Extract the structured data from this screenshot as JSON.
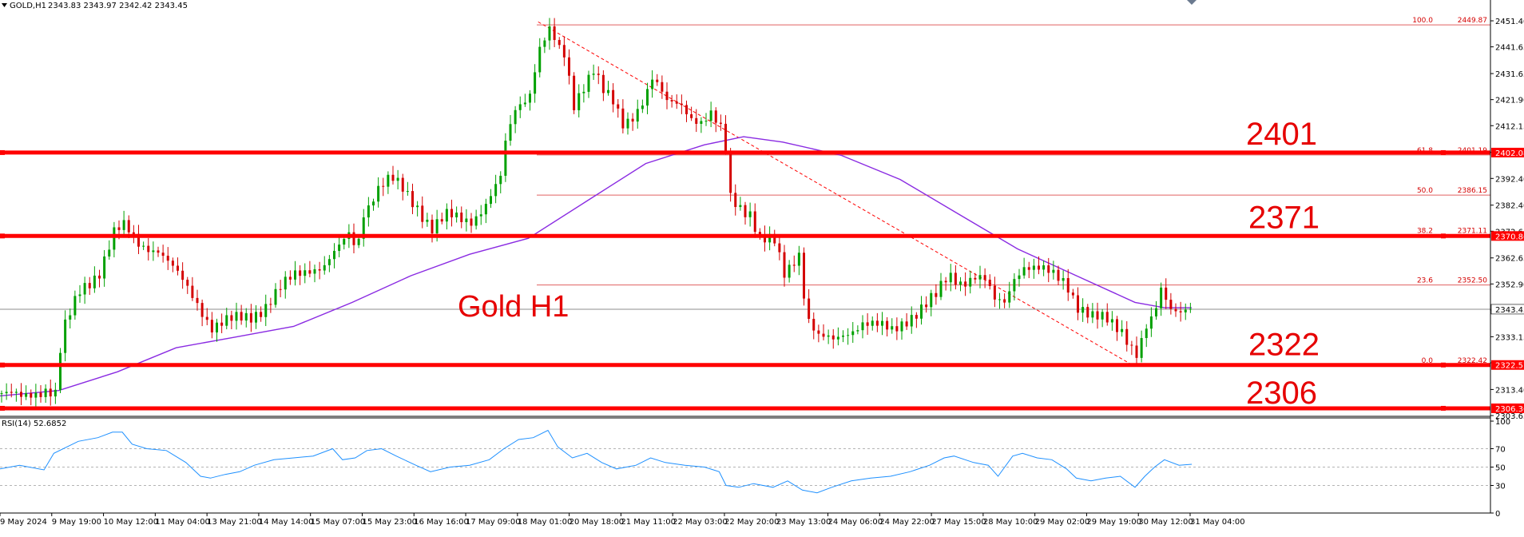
{
  "header": {
    "symbol": "GOLD,H1",
    "ohlc": "2343.83 2343.97 2342.42 2343.45"
  },
  "rsi_header": "RSI(14) 52.6852",
  "chart_data": [
    {
      "type": "candlestick",
      "symbol": "GOLD",
      "timeframe": "H1",
      "title": "Gold H1",
      "ylim": [
        2303.65,
        2455
      ],
      "y_ticks": [
        "2451.40",
        "2441.65",
        "2431.65",
        "2421.90",
        "2412.15",
        "2402.15",
        "2392.40",
        "2382.40",
        "2372.65",
        "2362.65",
        "2352.90",
        "2343.15",
        "2333.15",
        "2323.40",
        "2313.40",
        "2303.65"
      ],
      "x_ticks": [
        "9 May 2024",
        "9 May 19:00",
        "10 May 12:00",
        "11 May 04:00",
        "13 May 21:00",
        "14 May 14:00",
        "15 May 07:00",
        "15 May 23:00",
        "16 May 16:00",
        "17 May 09:00",
        "18 May 01:00",
        "20 May 18:00",
        "21 May 11:00",
        "22 May 03:00",
        "22 May 20:00",
        "23 May 13:00",
        "24 May 06:00",
        "24 May 22:00",
        "27 May 15:00",
        "28 May 10:00",
        "29 May 02:00",
        "29 May 19:00",
        "30 May 12:00",
        "31 May 04:00"
      ],
      "price_path": [
        [
          0,
          2312
        ],
        [
          20,
          2310
        ],
        [
          45,
          2314
        ],
        [
          55,
          2312
        ],
        [
          62,
          2334
        ],
        [
          80,
          2350
        ],
        [
          100,
          2358
        ],
        [
          115,
          2372
        ],
        [
          125,
          2374
        ],
        [
          140,
          2368
        ],
        [
          160,
          2366
        ],
        [
          180,
          2356
        ],
        [
          200,
          2346
        ],
        [
          215,
          2337
        ],
        [
          235,
          2339
        ],
        [
          255,
          2341
        ],
        [
          270,
          2345
        ],
        [
          285,
          2351
        ],
        [
          300,
          2356
        ],
        [
          315,
          2359
        ],
        [
          330,
          2360
        ],
        [
          345,
          2366
        ],
        [
          355,
          2371
        ],
        [
          363,
          2366
        ],
        [
          370,
          2380
        ],
        [
          385,
          2389
        ],
        [
          398,
          2392
        ],
        [
          410,
          2388
        ],
        [
          425,
          2382
        ],
        [
          440,
          2374
        ],
        [
          455,
          2378
        ],
        [
          470,
          2377
        ],
        [
          480,
          2377
        ],
        [
          495,
          2383
        ],
        [
          510,
          2392
        ],
        [
          515,
          2405
        ],
        [
          525,
          2418
        ],
        [
          540,
          2425
        ],
        [
          548,
          2440
        ],
        [
          555,
          2445
        ],
        [
          562,
          2448
        ],
        [
          568,
          2440
        ],
        [
          575,
          2438
        ],
        [
          585,
          2420
        ],
        [
          595,
          2428
        ],
        [
          605,
          2434
        ],
        [
          615,
          2425
        ],
        [
          625,
          2420
        ],
        [
          635,
          2412
        ],
        [
          645,
          2416
        ],
        [
          655,
          2422
        ],
        [
          665,
          2430
        ],
        [
          672,
          2426
        ],
        [
          680,
          2420
        ],
        [
          695,
          2420
        ],
        [
          705,
          2416
        ],
        [
          715,
          2414
        ],
        [
          725,
          2416
        ],
        [
          735,
          2410
        ],
        [
          742,
          2400
        ],
        [
          745,
          2385
        ],
        [
          755,
          2382
        ],
        [
          765,
          2380
        ],
        [
          775,
          2370
        ],
        [
          790,
          2368
        ],
        [
          800,
          2356
        ],
        [
          815,
          2365
        ],
        [
          820,
          2350
        ],
        [
          825,
          2340
        ],
        [
          835,
          2333
        ],
        [
          850,
          2331
        ],
        [
          865,
          2335
        ],
        [
          880,
          2339
        ],
        [
          895,
          2337
        ],
        [
          910,
          2335
        ],
        [
          925,
          2340
        ],
        [
          940,
          2344
        ],
        [
          955,
          2348
        ],
        [
          968,
          2356
        ],
        [
          980,
          2354
        ],
        [
          995,
          2356
        ],
        [
          1005,
          2354
        ],
        [
          1015,
          2346
        ],
        [
          1025,
          2346
        ],
        [
          1035,
          2356
        ],
        [
          1045,
          2360
        ],
        [
          1060,
          2358
        ],
        [
          1075,
          2356
        ],
        [
          1088,
          2354
        ],
        [
          1100,
          2345
        ],
        [
          1115,
          2340
        ],
        [
          1130,
          2339
        ],
        [
          1145,
          2336
        ],
        [
          1160,
          2327
        ],
        [
          1170,
          2336
        ],
        [
          1178,
          2340
        ],
        [
          1185,
          2350
        ],
        [
          1195,
          2344
        ],
        [
          1205,
          2344
        ],
        [
          1218,
          2345
        ]
      ],
      "candle_sample_step": 5,
      "moving_average": {
        "type": "MA",
        "color": "#8a2be2",
        "path": [
          [
            0,
            2311
          ],
          [
            60,
            2313
          ],
          [
            120,
            2320
          ],
          [
            180,
            2329
          ],
          [
            240,
            2333
          ],
          [
            300,
            2337
          ],
          [
            360,
            2346
          ],
          [
            420,
            2356
          ],
          [
            480,
            2364
          ],
          [
            540,
            2370
          ],
          [
            600,
            2384
          ],
          [
            660,
            2398
          ],
          [
            720,
            2405
          ],
          [
            760,
            2408
          ],
          [
            800,
            2406
          ],
          [
            860,
            2401
          ],
          [
            920,
            2392
          ],
          [
            980,
            2379
          ],
          [
            1040,
            2366
          ],
          [
            1100,
            2356
          ],
          [
            1160,
            2346
          ],
          [
            1190,
            2344
          ],
          [
            1218,
            2344
          ]
        ]
      },
      "fibonacci": {
        "levels": [
          {
            "ratio": "100.0",
            "price": "2449.87",
            "y": 2449.87
          },
          {
            "ratio": "61.8",
            "price": "2401.19",
            "y": 2401.19
          },
          {
            "ratio": "50.0",
            "price": "2386.15",
            "y": 2386.15
          },
          {
            "ratio": "38.2",
            "price": "2371.11",
            "y": 2371.11
          },
          {
            "ratio": "23.6",
            "price": "2352.50",
            "y": 2352.5
          },
          {
            "ratio": "0.0",
            "price": "2322.42",
            "y": 2322.42
          }
        ],
        "trendline": [
          [
            550,
            2451
          ],
          [
            1160,
            2322
          ]
        ]
      },
      "horizontal_levels": [
        {
          "label": "2401",
          "price_label": "2402.08",
          "y": 2402.08,
          "color": "#ff0000"
        },
        {
          "label": "2371",
          "price_label": "2370.86",
          "y": 2370.86,
          "color": "#ff0000"
        },
        {
          "label": "2322",
          "price_label": "2322.57",
          "y": 2322.57,
          "color": "#ff0000"
        },
        {
          "label": "2306",
          "price_label": "2306.36",
          "y": 2306.36,
          "color": "#ff0000"
        }
      ],
      "current_price": {
        "y": 2343.45,
        "label": "2343.45"
      },
      "colors": {
        "bull": "#00a000",
        "bear": "#d40000",
        "level": "#ff0000",
        "ma": "#8a2be2",
        "fib": "#e06060"
      }
    },
    {
      "type": "line",
      "name": "RSI(14)",
      "value": "52.6852",
      "ylim": [
        0,
        100
      ],
      "y_ticks": [
        "100",
        "70",
        "50",
        "30",
        "0"
      ],
      "levels": [
        70,
        50,
        30
      ],
      "color": "#1e90ff",
      "path": [
        [
          0,
          48
        ],
        [
          20,
          52
        ],
        [
          45,
          47
        ],
        [
          55,
          65
        ],
        [
          80,
          78
        ],
        [
          100,
          82
        ],
        [
          115,
          88
        ],
        [
          125,
          88
        ],
        [
          135,
          75
        ],
        [
          150,
          70
        ],
        [
          170,
          68
        ],
        [
          190,
          55
        ],
        [
          205,
          40
        ],
        [
          215,
          38
        ],
        [
          230,
          42
        ],
        [
          245,
          45
        ],
        [
          260,
          52
        ],
        [
          280,
          58
        ],
        [
          300,
          60
        ],
        [
          320,
          62
        ],
        [
          340,
          70
        ],
        [
          350,
          58
        ],
        [
          363,
          60
        ],
        [
          375,
          68
        ],
        [
          390,
          70
        ],
        [
          405,
          62
        ],
        [
          425,
          52
        ],
        [
          440,
          45
        ],
        [
          460,
          50
        ],
        [
          480,
          52
        ],
        [
          500,
          58
        ],
        [
          515,
          70
        ],
        [
          530,
          80
        ],
        [
          545,
          82
        ],
        [
          560,
          90
        ],
        [
          570,
          72
        ],
        [
          585,
          60
        ],
        [
          600,
          65
        ],
        [
          615,
          55
        ],
        [
          630,
          48
        ],
        [
          650,
          52
        ],
        [
          665,
          60
        ],
        [
          680,
          55
        ],
        [
          700,
          52
        ],
        [
          720,
          50
        ],
        [
          735,
          45
        ],
        [
          742,
          30
        ],
        [
          755,
          28
        ],
        [
          770,
          32
        ],
        [
          790,
          28
        ],
        [
          805,
          35
        ],
        [
          820,
          25
        ],
        [
          835,
          22
        ],
        [
          850,
          28
        ],
        [
          870,
          35
        ],
        [
          890,
          38
        ],
        [
          910,
          40
        ],
        [
          930,
          45
        ],
        [
          950,
          52
        ],
        [
          965,
          60
        ],
        [
          975,
          62
        ],
        [
          995,
          55
        ],
        [
          1010,
          52
        ],
        [
          1020,
          40
        ],
        [
          1035,
          62
        ],
        [
          1045,
          65
        ],
        [
          1060,
          60
        ],
        [
          1075,
          58
        ],
        [
          1090,
          48
        ],
        [
          1100,
          38
        ],
        [
          1115,
          35
        ],
        [
          1130,
          38
        ],
        [
          1145,
          40
        ],
        [
          1160,
          28
        ],
        [
          1170,
          40
        ],
        [
          1180,
          50
        ],
        [
          1190,
          58
        ],
        [
          1205,
          52
        ],
        [
          1218,
          53
        ]
      ]
    }
  ]
}
